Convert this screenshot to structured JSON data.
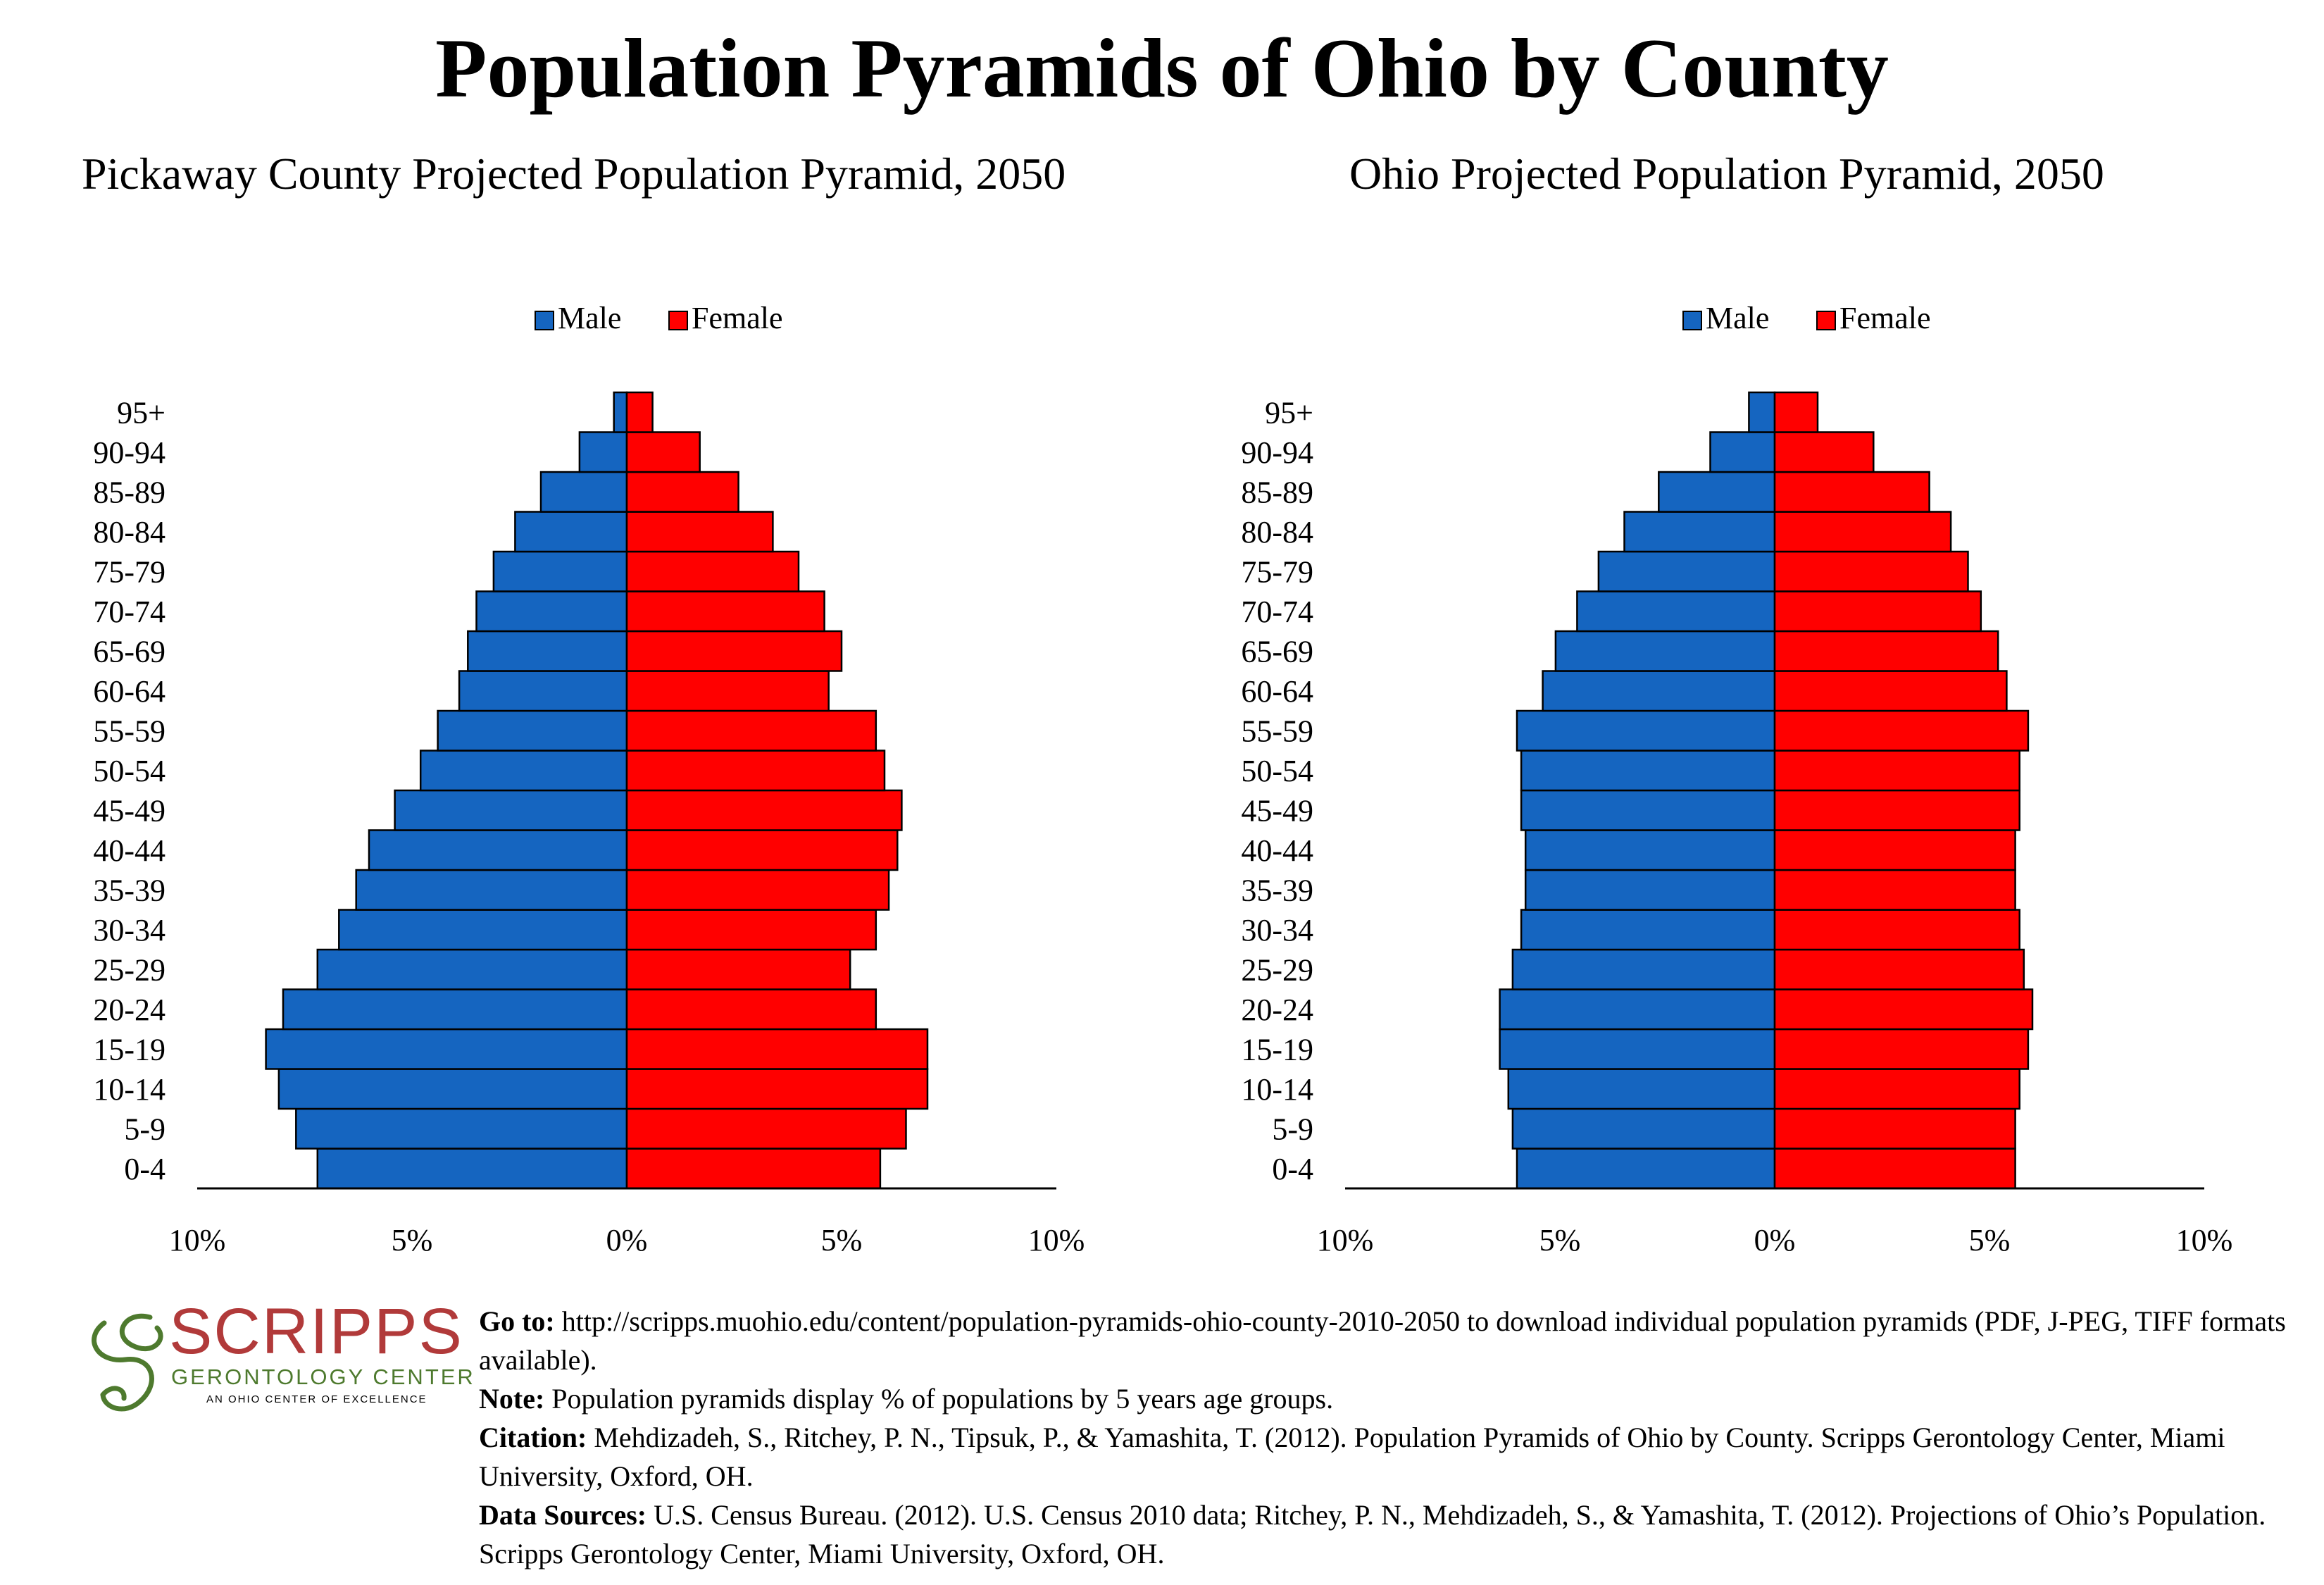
{
  "title": "Population Pyramids of Ohio by County",
  "charts": {
    "left": {
      "title": "Pickaway County Projected Population Pyramid, 2050"
    },
    "right": {
      "title": "Ohio Projected Population Pyramid, 2050"
    }
  },
  "colors": {
    "male": "#1565c0",
    "female": "#ff0000"
  },
  "chart_data": [
    {
      "type": "bar",
      "orientation": "horizontal-pyramid",
      "title": "Pickaway County Projected Population Pyramid, 2050",
      "categories": [
        "0-4",
        "5-9",
        "10-14",
        "15-19",
        "20-24",
        "25-29",
        "30-34",
        "35-39",
        "40-44",
        "45-49",
        "50-54",
        "55-59",
        "60-64",
        "65-69",
        "70-74",
        "75-79",
        "80-84",
        "85-89",
        "90-94",
        "95+"
      ],
      "series": [
        {
          "name": "Male",
          "values": [
            7.2,
            7.7,
            8.1,
            8.4,
            8.0,
            7.2,
            6.7,
            6.3,
            6.0,
            5.4,
            4.8,
            4.4,
            3.9,
            3.7,
            3.5,
            3.1,
            2.6,
            2.0,
            1.1,
            0.3
          ]
        },
        {
          "name": "Female",
          "values": [
            5.9,
            6.5,
            7.0,
            7.0,
            5.8,
            5.2,
            5.8,
            6.1,
            6.3,
            6.4,
            6.0,
            5.8,
            4.7,
            5.0,
            4.6,
            4.0,
            3.4,
            2.6,
            1.7,
            0.6
          ]
        }
      ],
      "xlim": [
        -10,
        10
      ],
      "x_ticks": [
        "10%",
        "5%",
        "0%",
        "5%",
        "10%"
      ],
      "legend": "top-center",
      "grid": false
    },
    {
      "type": "bar",
      "orientation": "horizontal-pyramid",
      "title": "Ohio Projected Population Pyramid, 2050",
      "categories": [
        "0-4",
        "5-9",
        "10-14",
        "15-19",
        "20-24",
        "25-29",
        "30-34",
        "35-39",
        "40-44",
        "45-49",
        "50-54",
        "55-59",
        "60-64",
        "65-69",
        "70-74",
        "75-79",
        "80-84",
        "85-89",
        "90-94",
        "95+"
      ],
      "series": [
        {
          "name": "Male",
          "values": [
            6.0,
            6.1,
            6.2,
            6.4,
            6.4,
            6.1,
            5.9,
            5.8,
            5.8,
            5.9,
            5.9,
            6.0,
            5.4,
            5.1,
            4.6,
            4.1,
            3.5,
            2.7,
            1.5,
            0.6
          ]
        },
        {
          "name": "Female",
          "values": [
            5.6,
            5.6,
            5.7,
            5.9,
            6.0,
            5.8,
            5.7,
            5.6,
            5.6,
            5.7,
            5.7,
            5.9,
            5.4,
            5.2,
            4.8,
            4.5,
            4.1,
            3.6,
            2.3,
            1.0
          ]
        }
      ],
      "xlim": [
        -10,
        10
      ],
      "x_ticks": [
        "10%",
        "5%",
        "0%",
        "5%",
        "10%"
      ],
      "legend": "top-center",
      "grid": false
    }
  ],
  "footer": {
    "logo": {
      "name": "SCRIPPS",
      "subtitle": "GERONTOLOGY CENTER",
      "tagline": "AN OHIO CENTER OF EXCELLENCE"
    },
    "goto_label": "Go to:",
    "goto_text": " http://scripps.muohio.edu/content/population-pyramids-ohio-county-2010-2050 to download individual population pyramids (PDF, J-PEG, TIFF formats available).",
    "note_label": "Note:",
    "note_text": " Population pyramids display % of populations by 5 years age groups.",
    "citation_label": "Citation:",
    "citation_text": " Mehdizadeh, S., Ritchey, P. N., Tipsuk, P., & Yamashita, T. (2012). Population Pyramids of Ohio by County. Scripps Gerontology Center, Miami University, Oxford, OH.",
    "sources_label": "Data Sources:",
    "sources_text": " U.S. Census Bureau. (2012). U.S. Census 2010 data; Ritchey, P. N., Mehdizadeh, S., & Yamashita, T. (2012). Projections of Ohio’s Population. Scripps Gerontology Center, Miami University, Oxford, OH."
  }
}
